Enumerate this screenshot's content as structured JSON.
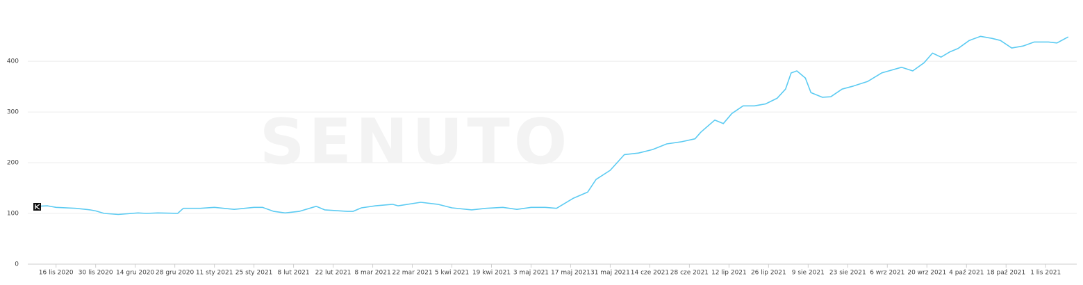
{
  "chart_data": {
    "type": "line",
    "watermark": "SENUTO",
    "color": "#5ccbf2",
    "grid": true,
    "ylim": [
      0,
      470
    ],
    "yticks": [
      0,
      100,
      200,
      300,
      400
    ],
    "xlim": [
      "2020-11-06",
      "2021-11-12"
    ],
    "xticks": [
      {
        "value": "2020-11-16",
        "label": "16 lis 2020"
      },
      {
        "value": "2020-11-30",
        "label": "30 lis 2020"
      },
      {
        "value": "2020-12-14",
        "label": "14 gru 2020"
      },
      {
        "value": "2020-12-28",
        "label": "28 gru 2020"
      },
      {
        "value": "2021-01-11",
        "label": "11 sty 2021"
      },
      {
        "value": "2021-01-25",
        "label": "25 sty 2021"
      },
      {
        "value": "2021-02-08",
        "label": "8 lut 2021"
      },
      {
        "value": "2021-02-22",
        "label": "22 lut 2021"
      },
      {
        "value": "2021-03-08",
        "label": "8 mar 2021"
      },
      {
        "value": "2021-03-22",
        "label": "22 mar 2021"
      },
      {
        "value": "2021-04-05",
        "label": "5 kwi 2021"
      },
      {
        "value": "2021-04-19",
        "label": "19 kwi 2021"
      },
      {
        "value": "2021-05-03",
        "label": "3 maj 2021"
      },
      {
        "value": "2021-05-17",
        "label": "17 maj 2021"
      },
      {
        "value": "2021-05-31",
        "label": "31 maj 2021"
      },
      {
        "value": "2021-06-14",
        "label": "14 cze 2021"
      },
      {
        "value": "2021-06-28",
        "label": "28 cze 2021"
      },
      {
        "value": "2021-07-12",
        "label": "12 lip 2021"
      },
      {
        "value": "2021-07-26",
        "label": "26 lip 2021"
      },
      {
        "value": "2021-08-09",
        "label": "9 sie 2021"
      },
      {
        "value": "2021-08-23",
        "label": "23 sie 2021"
      },
      {
        "value": "2021-09-06",
        "label": "6 wrz 2021"
      },
      {
        "value": "2021-09-20",
        "label": "20 wrz 2021"
      },
      {
        "value": "2021-10-04",
        "label": "4 paź 2021"
      },
      {
        "value": "2021-10-18",
        "label": "18 paź 2021"
      },
      {
        "value": "2021-11-01",
        "label": "1 lis 2021"
      }
    ],
    "x": [
      "2020-11-09",
      "2020-11-13",
      "2020-11-16",
      "2020-11-23",
      "2020-11-28",
      "2020-11-30",
      "2020-12-03",
      "2020-12-08",
      "2020-12-15",
      "2020-12-18",
      "2020-12-22",
      "2020-12-29",
      "2020-12-31",
      "2021-01-06",
      "2021-01-11",
      "2021-01-18",
      "2021-01-25",
      "2021-01-28",
      "2021-02-01",
      "2021-02-05",
      "2021-02-10",
      "2021-02-16",
      "2021-02-19",
      "2021-02-27",
      "2021-03-01",
      "2021-03-04",
      "2021-03-09",
      "2021-03-15",
      "2021-03-17",
      "2021-03-25",
      "2021-03-31",
      "2021-04-05",
      "2021-04-12",
      "2021-04-17",
      "2021-04-23",
      "2021-04-28",
      "2021-05-03",
      "2021-05-08",
      "2021-05-12",
      "2021-05-18",
      "2021-05-23",
      "2021-05-26",
      "2021-05-31",
      "2021-06-05",
      "2021-06-10",
      "2021-06-15",
      "2021-06-20",
      "2021-06-25",
      "2021-06-30",
      "2021-07-02",
      "2021-07-07",
      "2021-07-10",
      "2021-07-13",
      "2021-07-17",
      "2021-07-21",
      "2021-07-25",
      "2021-07-29",
      "2021-08-01",
      "2021-08-03",
      "2021-08-05",
      "2021-08-08",
      "2021-08-10",
      "2021-08-14",
      "2021-08-17",
      "2021-08-21",
      "2021-08-25",
      "2021-08-30",
      "2021-09-04",
      "2021-09-11",
      "2021-09-15",
      "2021-09-19",
      "2021-09-22",
      "2021-09-25",
      "2021-09-28",
      "2021-10-01",
      "2021-10-05",
      "2021-10-09",
      "2021-10-13",
      "2021-10-16",
      "2021-10-20",
      "2021-10-24",
      "2021-10-28",
      "2021-11-02",
      "2021-11-05",
      "2021-11-09"
    ],
    "values": [
      114,
      115,
      112,
      110,
      107,
      105,
      100,
      98,
      101,
      100,
      101,
      100,
      110,
      110,
      112,
      108,
      112,
      112,
      104,
      101,
      104,
      114,
      107,
      104,
      104,
      111,
      115,
      118,
      115,
      122,
      118,
      111,
      107,
      110,
      112,
      108,
      112,
      112,
      110,
      130,
      142,
      167,
      185,
      216,
      219,
      226,
      237,
      241,
      247,
      260,
      284,
      277,
      297,
      312,
      312,
      316,
      327,
      345,
      377,
      381,
      367,
      338,
      329,
      330,
      345,
      351,
      360,
      377,
      388,
      381,
      397,
      416,
      408,
      418,
      425,
      441,
      449,
      445,
      441,
      426,
      430,
      438,
      438,
      436,
      448
    ]
  }
}
